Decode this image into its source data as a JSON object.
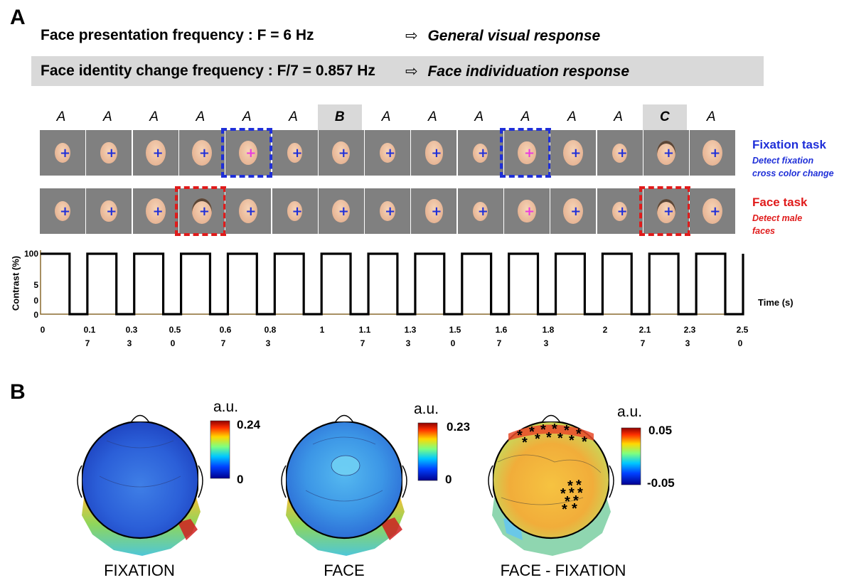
{
  "panel_a": {
    "label": "A",
    "presentation": {
      "text": "Face presentation frequency : F = 6 Hz",
      "arrow": "⇨",
      "response": "General visual response"
    },
    "identity": {
      "text": "Face identity change frequency : F/7 = 0.857 Hz",
      "arrow": "⇨",
      "response": "Face individuation response"
    },
    "sequence_letters": [
      "A",
      "A",
      "A",
      "A",
      "A",
      "A",
      "B",
      "A",
      "A",
      "A",
      "A",
      "A",
      "A",
      "C",
      "A"
    ],
    "highlighted_letters": [
      6,
      13
    ],
    "fixation_row": {
      "title": "Fixation task",
      "subtitle_line1": "Detect fixation",
      "subtitle_line2": "cross color change",
      "boxed_frames": [
        4,
        10
      ],
      "magenta_frames": [
        4,
        10
      ]
    },
    "face_row": {
      "title": "Face task",
      "subtitle_line1": "Detect male",
      "subtitle_line2": "faces",
      "boxed_frames": [
        3,
        13
      ],
      "magenta_frames": [
        10
      ]
    },
    "colors": {
      "blue": "#1f2fd8",
      "red": "#e01b1b",
      "magenta": "#e83adf",
      "frame_bg": "#808080"
    }
  },
  "timeline": {
    "ylabel": "Contrast (%)",
    "xlabel": "Time (s)",
    "y_ticks": [
      "100",
      "5",
      "0",
      "0"
    ],
    "x_ticks": [
      {
        "top": "0",
        "bottom": ""
      },
      {
        "top": "0.1",
        "bottom": "7"
      },
      {
        "top": "0.3",
        "bottom": "3"
      },
      {
        "top": "0.5",
        "bottom": "0"
      },
      {
        "top": "0.6",
        "bottom": "7"
      },
      {
        "top": "0.8",
        "bottom": "3"
      },
      {
        "top": "1",
        "bottom": ""
      },
      {
        "top": "1.1",
        "bottom": "7"
      },
      {
        "top": "1.3",
        "bottom": "3"
      },
      {
        "top": "1.5",
        "bottom": "0"
      },
      {
        "top": "1.6",
        "bottom": "7"
      },
      {
        "top": "1.8",
        "bottom": "3"
      },
      {
        "top": "2",
        "bottom": ""
      },
      {
        "top": "2.1",
        "bottom": "7"
      },
      {
        "top": "2.3",
        "bottom": "3"
      },
      {
        "top": "2.5",
        "bottom": "0"
      }
    ],
    "cycles": 15
  },
  "panel_b": {
    "label": "B",
    "maps": [
      {
        "caption": "FIXATION",
        "unit": "a.u.",
        "max": "0.24",
        "min": "0"
      },
      {
        "caption": "FACE",
        "unit": "a.u.",
        "max": "0.23",
        "min": "0"
      },
      {
        "caption": "FACE - FIXATION",
        "unit": "a.u.",
        "max": "0.05",
        "min": "-0.05"
      }
    ]
  }
}
